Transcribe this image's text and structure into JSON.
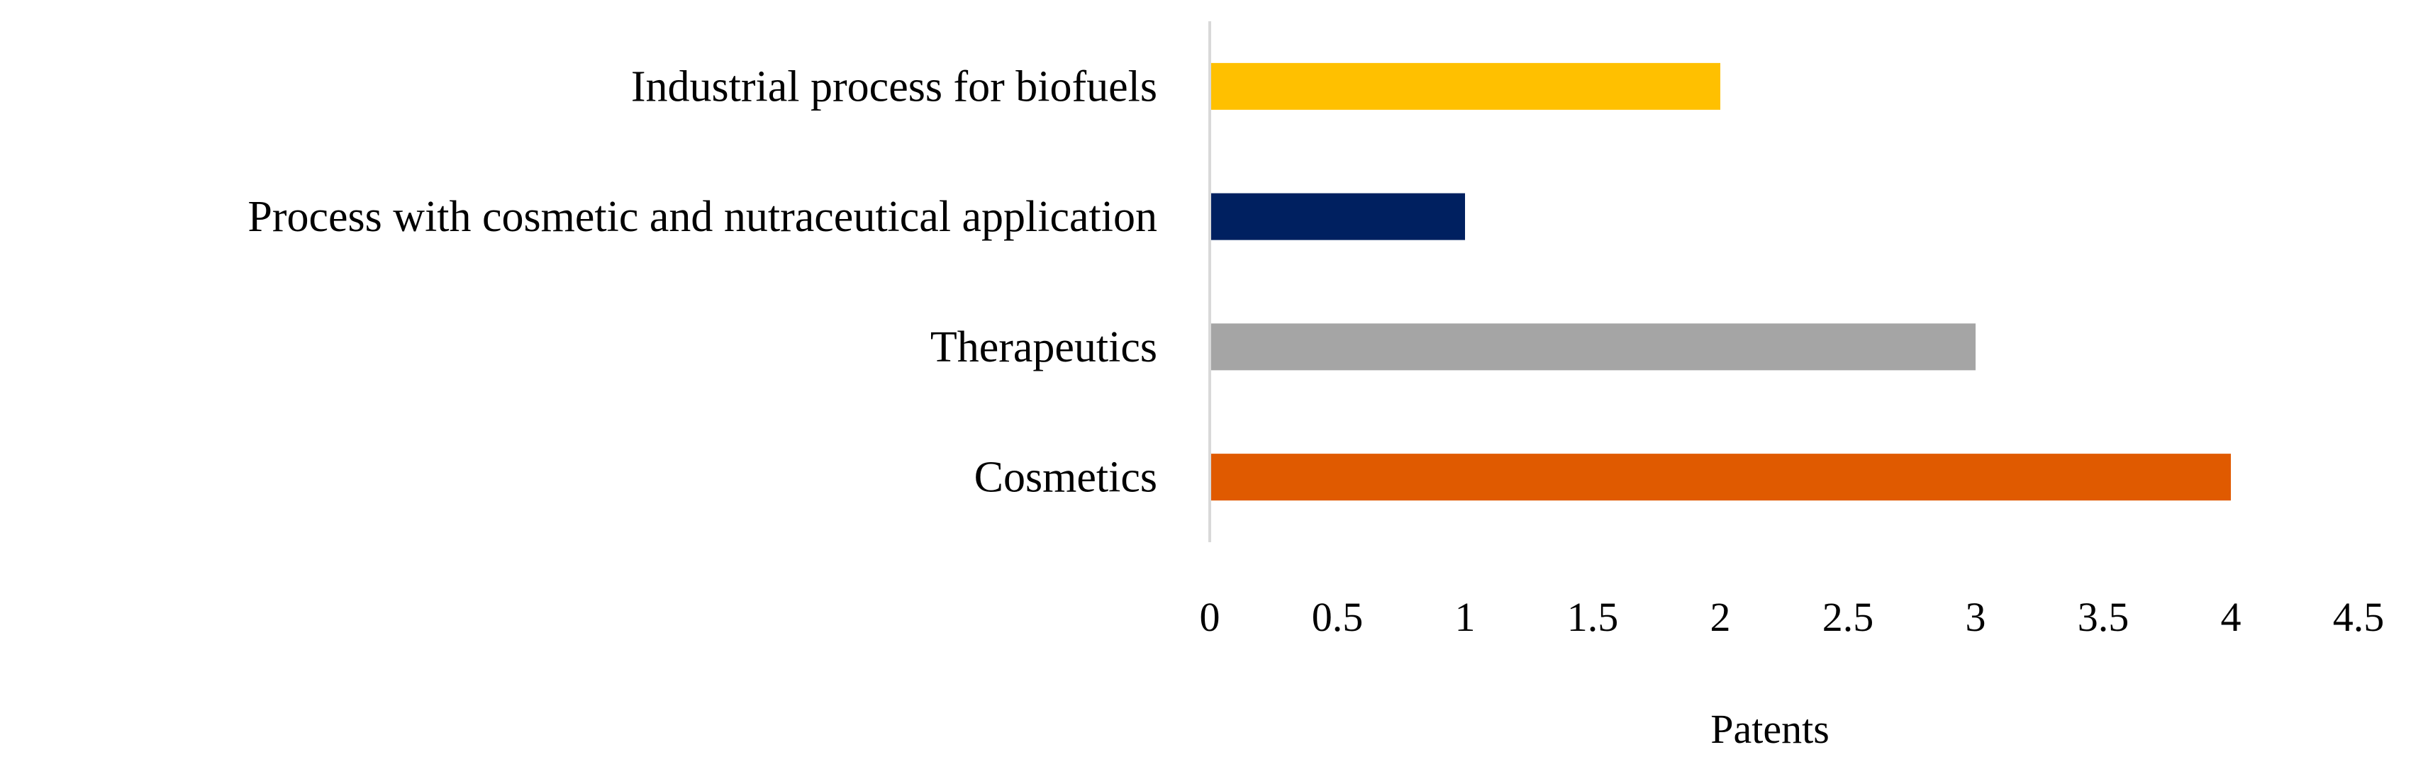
{
  "chart_data": {
    "type": "bar",
    "orientation": "horizontal",
    "categories": [
      "Industrial process for biofuels",
      "Process with cosmetic and nutraceutical application",
      "Therapeutics",
      "Cosmetics"
    ],
    "values": [
      2,
      1,
      3,
      4
    ],
    "colors": [
      "#FFC000",
      "#002060",
      "#A5A5A5",
      "#E05A00"
    ],
    "xlabel": "Patents",
    "ylabel": "",
    "xlim": [
      0,
      4.5
    ],
    "xticks": [
      "0",
      "0.5",
      "1",
      "1.5",
      "2",
      "2.5",
      "3",
      "3.5",
      "4",
      "4.5"
    ],
    "grid": false,
    "legend": "none"
  }
}
